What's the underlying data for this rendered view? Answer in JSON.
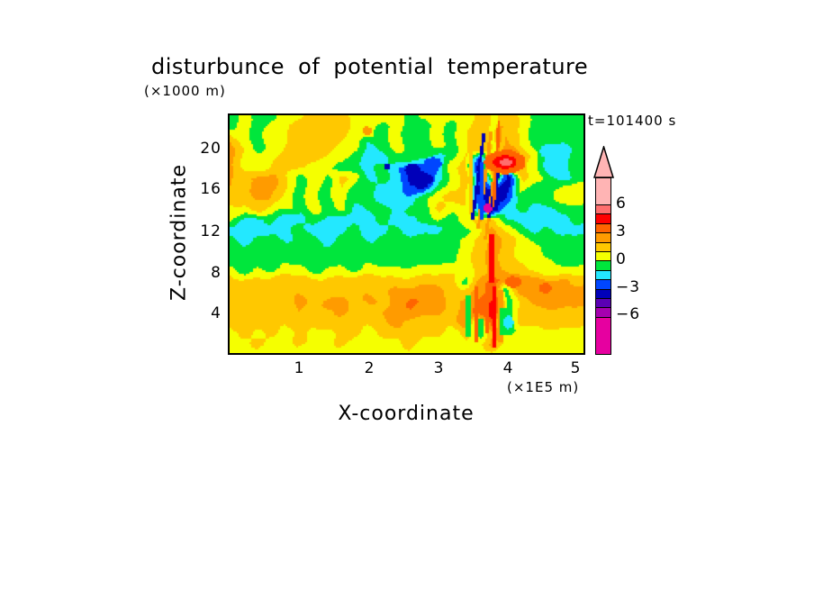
{
  "chart_data": {
    "type": "heatmap",
    "title": "disturbunce of potential temperature",
    "y_unit_label": "(×1000 m)",
    "timestamp_label": "t=101400 s",
    "xlabel": "X-coordinate",
    "x_unit_label": "(×1E5 m)",
    "ylabel": "Z-coordinate",
    "x_ticks": [
      "1",
      "2",
      "3",
      "4",
      "5"
    ],
    "y_ticks": [
      "20",
      "16",
      "12",
      "8",
      "4"
    ],
    "colorbar_labels": [
      "6",
      "3",
      "0",
      "−3",
      "−6"
    ],
    "legend_position": "right",
    "grid_lines": false,
    "xlim": [
      0,
      5.1
    ],
    "zlim": [
      0,
      23.1
    ],
    "level_step": 1,
    "palette": [
      {
        "range": ">6",
        "color": "#FFB4B4"
      },
      {
        "range": "5..6",
        "color": "#FF6E6E"
      },
      {
        "range": "4..5",
        "color": "#FF0000"
      },
      {
        "range": "3..4",
        "color": "#FF6400"
      },
      {
        "range": "2..3",
        "color": "#FF9B00"
      },
      {
        "range": "1..2",
        "color": "#FFC800"
      },
      {
        "range": "0..1",
        "color": "#F5FF00"
      },
      {
        "range": "-1..0",
        "color": "#00E63C"
      },
      {
        "range": "-2..-1",
        "color": "#23E8FF"
      },
      {
        "range": "-3..-2",
        "color": "#0046FF"
      },
      {
        "range": "-4..-3",
        "color": "#0000B9"
      },
      {
        "range": "-5..-4",
        "color": "#5A00B4"
      },
      {
        "range": "-6..-5",
        "color": "#A500AF"
      },
      {
        "range": "<-6",
        "color": "#E600A0"
      }
    ],
    "grid": {
      "x0": 0,
      "dx": 0.2,
      "cols": 26,
      "z_top": 23,
      "dz": 1,
      "rows": 24,
      "values": [
        [
          -0.5,
          0.5,
          -0.5,
          -0.5,
          0.5,
          0.8,
          1.5,
          1.5,
          1.2,
          0.8,
          0.5,
          0.5,
          0.5,
          -0.5,
          0.5,
          0.5,
          0.5,
          0.5,
          1.5,
          0.8,
          1.5,
          0.8,
          -0.5,
          -0.5,
          -0.5,
          -0.5
        ],
        [
          -0.5,
          0.5,
          -0.5,
          0.5,
          0.8,
          1.5,
          1.8,
          1.8,
          1.5,
          0.8,
          0.5,
          -0.5,
          0.5,
          -0.5,
          -0.5,
          0.5,
          -0.5,
          0.8,
          1.5,
          0.8,
          1.8,
          0.8,
          -0.5,
          -0.5,
          -0.5,
          -0.5
        ],
        [
          1.5,
          0.5,
          -0.5,
          0.5,
          0.8,
          1.5,
          1.8,
          1.5,
          1.2,
          0.8,
          0.5,
          -0.5,
          0.5,
          -0.5,
          -0.5,
          0.5,
          -0.5,
          0.8,
          1.8,
          0.8,
          2.0,
          1.0,
          -0.5,
          -0.5,
          -0.5,
          -0.5
        ],
        [
          2.5,
          0.8,
          -0.5,
          0.5,
          1.0,
          1.5,
          1.5,
          1.2,
          0.8,
          0.5,
          -1.5,
          -0.5,
          0.5,
          -0.5,
          -0.5,
          0.5,
          -0.5,
          1.0,
          2.0,
          0.8,
          2.2,
          0.8,
          -0.5,
          -1.5,
          -1.5,
          -0.5
        ],
        [
          2.5,
          0.8,
          0.5,
          0.8,
          1.2,
          1.5,
          1.2,
          0.8,
          0.5,
          -0.5,
          -1.5,
          -1.5,
          -0.5,
          -0.5,
          -0.5,
          -1.5,
          -0.5,
          1.2,
          -2.5,
          1.0,
          4.5,
          2.0,
          0.5,
          -1.5,
          -1.5,
          -0.5
        ],
        [
          2.5,
          1.0,
          0.5,
          1.0,
          1.5,
          1.2,
          0.8,
          0.5,
          -0.5,
          -0.5,
          -1.5,
          -0.5,
          -1.5,
          -3.5,
          -2.5,
          -2.5,
          0.5,
          1.5,
          -3.5,
          2.5,
          4.5,
          1.5,
          0.5,
          -1.5,
          -1.5,
          -0.5
        ],
        [
          2.0,
          1.5,
          2.5,
          2.5,
          1.0,
          -0.5,
          0.8,
          -0.5,
          1.5,
          0.5,
          -1.5,
          -0.5,
          -1.5,
          -3.5,
          -3.5,
          -1.5,
          0.5,
          1.5,
          -3.5,
          0.8,
          -3.5,
          1.5,
          0.5,
          -0.5,
          -1.5,
          -0.5
        ],
        [
          2.0,
          1.5,
          2.5,
          2.5,
          1.2,
          -0.5,
          0.5,
          -0.5,
          1.0,
          -0.5,
          -0.5,
          -1.5,
          -1.5,
          -2.5,
          -3.5,
          -0.5,
          0.5,
          1.5,
          -3.5,
          -3.5,
          -3.5,
          0.5,
          -0.5,
          -0.5,
          0.5,
          0.8
        ],
        [
          1.8,
          1.5,
          2.0,
          2.0,
          1.0,
          -0.5,
          0.5,
          -0.5,
          0.5,
          -0.5,
          -0.5,
          -1.5,
          -1.5,
          -1.5,
          -0.5,
          0.5,
          1.5,
          1.5,
          -2.5,
          -3.5,
          -3.5,
          -0.5,
          -0.5,
          -0.5,
          0.5,
          0.8
        ],
        [
          0.5,
          0.5,
          1.5,
          0.5,
          0.5,
          -0.5,
          0.5,
          -0.5,
          0.5,
          -1.5,
          -0.5,
          -0.5,
          -1.5,
          -0.5,
          -0.5,
          1.5,
          0.5,
          0.5,
          -2.5,
          -3.5,
          -1.5,
          -0.5,
          -1.5,
          -1.5,
          -0.5,
          -0.5
        ],
        [
          0.5,
          -1.5,
          -1.5,
          -0.5,
          -1.5,
          -1.5,
          -0.5,
          -1.5,
          -1.5,
          -1.5,
          -1.5,
          -0.5,
          -1.5,
          -1.5,
          -0.5,
          0.5,
          -0.5,
          0.5,
          1.5,
          1.5,
          -1.5,
          -1.5,
          -1.5,
          -1.5,
          -1.5,
          -0.5
        ],
        [
          -1.5,
          -1.5,
          -1.5,
          -1.5,
          -1.5,
          -0.5,
          -1.5,
          -1.5,
          -1.5,
          -0.5,
          -1.5,
          -1.5,
          -0.5,
          -1.5,
          -1.5,
          -1.5,
          -0.5,
          -0.5,
          0.5,
          2.5,
          0.5,
          -0.5,
          -1.5,
          -0.5,
          -1.5,
          -1.5
        ],
        [
          -0.5,
          -1.5,
          -0.5,
          -0.5,
          -1.5,
          -0.5,
          -0.5,
          -1.5,
          -0.5,
          -0.5,
          -1.5,
          -0.5,
          -0.5,
          -0.5,
          -0.5,
          -0.5,
          -0.5,
          0.5,
          1.5,
          2.5,
          1.5,
          0.5,
          -0.5,
          -0.5,
          -0.5,
          -0.5
        ],
        [
          -0.5,
          -0.5,
          -0.5,
          -0.5,
          -0.5,
          -0.5,
          -0.5,
          -0.5,
          -0.5,
          -0.5,
          -0.5,
          -0.5,
          -0.5,
          -0.5,
          -0.5,
          -0.5,
          -0.5,
          0.5,
          1.5,
          2.5,
          1.5,
          0.5,
          0.5,
          -0.5,
          -0.5,
          -0.5
        ],
        [
          -0.5,
          -0.5,
          -0.5,
          -0.5,
          -0.5,
          -0.5,
          -0.5,
          -0.5,
          -0.5,
          -0.5,
          -0.5,
          -0.5,
          -0.5,
          -0.5,
          -0.5,
          -0.5,
          -0.5,
          0.5,
          1.5,
          2.5,
          1.5,
          0.8,
          0.5,
          0.5,
          -0.5,
          -0.5
        ],
        [
          0.5,
          -0.5,
          0.5,
          -0.5,
          0.5,
          0.5,
          -0.5,
          0.5,
          0.5,
          -0.5,
          0.5,
          0.5,
          0.5,
          0.5,
          0.5,
          0.5,
          0.5,
          0.5,
          1.5,
          2.5,
          1.5,
          1.5,
          0.5,
          0.5,
          0.5,
          0.5
        ],
        [
          1.5,
          1.5,
          1.5,
          1.5,
          1.5,
          1.5,
          1.5,
          1.5,
          1.5,
          1.5,
          1.5,
          1.5,
          1.5,
          1.5,
          1.5,
          1.5,
          1.5,
          -0.5,
          2.5,
          3.5,
          2.5,
          2.5,
          2.5,
          2.5,
          2.5,
          1.5
        ],
        [
          1.5,
          1.5,
          1.5,
          1.5,
          1.5,
          1.8,
          1.5,
          1.5,
          1.5,
          1.8,
          1.5,
          1.5,
          2.5,
          2.5,
          2.5,
          2.5,
          1.5,
          1.5,
          2.5,
          3.5,
          -0.5,
          2.5,
          2.5,
          2.5,
          2.5,
          2.5
        ],
        [
          1.5,
          1.5,
          1.5,
          1.5,
          1.5,
          2.5,
          1.5,
          2.5,
          2.5,
          1.5,
          2.5,
          1.5,
          2.5,
          3.5,
          2.5,
          2.5,
          1.5,
          2.5,
          3.5,
          4.5,
          -0.5,
          1.5,
          2.5,
          2.5,
          2.5,
          2.5
        ],
        [
          1.5,
          1.5,
          1.5,
          1.5,
          1.5,
          2.0,
          1.5,
          1.5,
          2.5,
          1.5,
          1.5,
          2.0,
          2.5,
          2.5,
          2.5,
          2.5,
          1.5,
          2.5,
          3.5,
          4.5,
          -0.5,
          1.5,
          1.5,
          1.5,
          1.5,
          1.5
        ],
        [
          1.5,
          1.5,
          1.5,
          1.5,
          1.5,
          1.5,
          1.5,
          1.5,
          1.5,
          1.5,
          1.5,
          1.5,
          2.5,
          1.5,
          1.5,
          1.5,
          1.5,
          2.5,
          -0.5,
          3.5,
          -1.5,
          1.5,
          1.5,
          1.5,
          1.5,
          1.5
        ],
        [
          0.5,
          1.5,
          0.5,
          1.5,
          0.5,
          1.5,
          0.5,
          0.5,
          1.5,
          1.5,
          0.5,
          1.5,
          1.5,
          1.5,
          1.5,
          1.5,
          0.5,
          1.5,
          -0.5,
          2.5,
          -0.5,
          0.5,
          0.5,
          0.5,
          0.5,
          0.5
        ],
        [
          0.5,
          0.5,
          1.5,
          0.5,
          0.5,
          1.5,
          0.5,
          0.5,
          1.5,
          0.5,
          0.5,
          0.5,
          0.5,
          1.5,
          0.5,
          0.5,
          0.5,
          0.5,
          0.5,
          2.5,
          0.5,
          0.5,
          0.5,
          0.5,
          0.5,
          0.5
        ],
        [
          0.5,
          0.5,
          0.5,
          0.5,
          0.5,
          0.5,
          0.5,
          0.5,
          0.5,
          0.5,
          0.5,
          0.5,
          0.5,
          0.5,
          0.5,
          0.5,
          0.5,
          0.5,
          0.5,
          0.5,
          0.5,
          0.5,
          0.5,
          0.5,
          0.5,
          0.5
        ]
      ]
    },
    "streaks": [
      {
        "x": 3.47,
        "z1": 13.4,
        "z2": 21.0,
        "v": 1.5,
        "w": 0.025
      },
      {
        "x": 3.5,
        "z1": 13.0,
        "z2": 21.3,
        "v": -3.5,
        "w": 0.022,
        "slope": 0.02
      },
      {
        "x": 3.58,
        "z1": 12.0,
        "z2": 21.5,
        "v": 2.5,
        "w": 0.025,
        "slope": 0.02
      },
      {
        "x": 3.63,
        "z1": 13.0,
        "z2": 18.5,
        "v": -2.5,
        "w": 0.02
      },
      {
        "x": 3.69,
        "z1": 11.0,
        "z2": 22.0,
        "v": 2.5,
        "w": 0.025,
        "slope": 0.02
      },
      {
        "x": 3.74,
        "z1": 13.2,
        "z2": 17.5,
        "v": -3.5,
        "w": 0.025,
        "slope": 0.03
      },
      {
        "x": 3.8,
        "z1": 14.2,
        "z2": 22.5,
        "v": 3.5,
        "w": 0.022,
        "slope": 0.01
      },
      {
        "x": 3.78,
        "z1": 6.9,
        "z2": 11.6,
        "v": 4.5,
        "w": 0.035
      },
      {
        "x": 3.81,
        "z1": 0.5,
        "z2": 6.5,
        "v": 4.5,
        "w": 0.028
      },
      {
        "x": 3.55,
        "z1": 1.0,
        "z2": 6.5,
        "v": 3.5,
        "w": 0.022
      },
      {
        "x": 3.62,
        "z1": 1.5,
        "z2": 3.3,
        "v": -0.5,
        "w": 0.05
      },
      {
        "x": 3.7,
        "z1": 2.0,
        "z2": 5.2,
        "v": 3.5,
        "w": 0.025
      },
      {
        "x": 3.9,
        "z1": 1.0,
        "z2": 6.2,
        "v": 2.5,
        "w": 0.04
      },
      {
        "x": 3.99,
        "z1": 1.8,
        "z2": 4.4,
        "v": -0.5,
        "w": 0.09
      },
      {
        "x": 3.44,
        "z1": 1.5,
        "z2": 5.6,
        "v": -0.5,
        "w": 0.03
      }
    ],
    "spots": [
      {
        "x": 3.97,
        "z": 18.55,
        "rx": 0.3,
        "rz": 1.15,
        "v": 3.5
      },
      {
        "x": 3.97,
        "z": 18.55,
        "rx": 0.17,
        "rz": 0.65,
        "v": 4.5
      },
      {
        "x": 3.98,
        "z": 18.5,
        "rx": 0.09,
        "rz": 0.35,
        "v": 5.5
      },
      {
        "x": 3.72,
        "z": 14.05,
        "rx": 0.06,
        "rz": 0.45,
        "v": -6.5
      },
      {
        "x": 2.64,
        "z": 17.8,
        "rx": 0.11,
        "rz": 0.6,
        "v": -3.5
      },
      {
        "x": 2.82,
        "z": 16.9,
        "rx": 0.11,
        "rz": 0.55,
        "v": -3.5
      },
      {
        "x": 2.93,
        "z": 18.4,
        "rx": 0.13,
        "rz": 0.6,
        "v": -2.5
      },
      {
        "x": 2.27,
        "z": 18.1,
        "rx": 0.05,
        "rz": 0.3,
        "v": -3.5
      },
      {
        "x": 4.62,
        "z": 19.6,
        "rx": 0.15,
        "rz": 0.75,
        "v": -1.5
      },
      {
        "x": 1.98,
        "z": 21.6,
        "rx": 0.07,
        "rz": 0.4,
        "v": 2.5
      },
      {
        "x": 4.08,
        "z": 6.9,
        "rx": 0.12,
        "rz": 0.55,
        "v": 3.5
      },
      {
        "x": 4.55,
        "z": 6.3,
        "rx": 0.09,
        "rz": 0.5,
        "v": 3.5
      },
      {
        "x": 4.02,
        "z": 3.0,
        "rx": 0.07,
        "rz": 0.65,
        "v": -1.5
      }
    ]
  }
}
